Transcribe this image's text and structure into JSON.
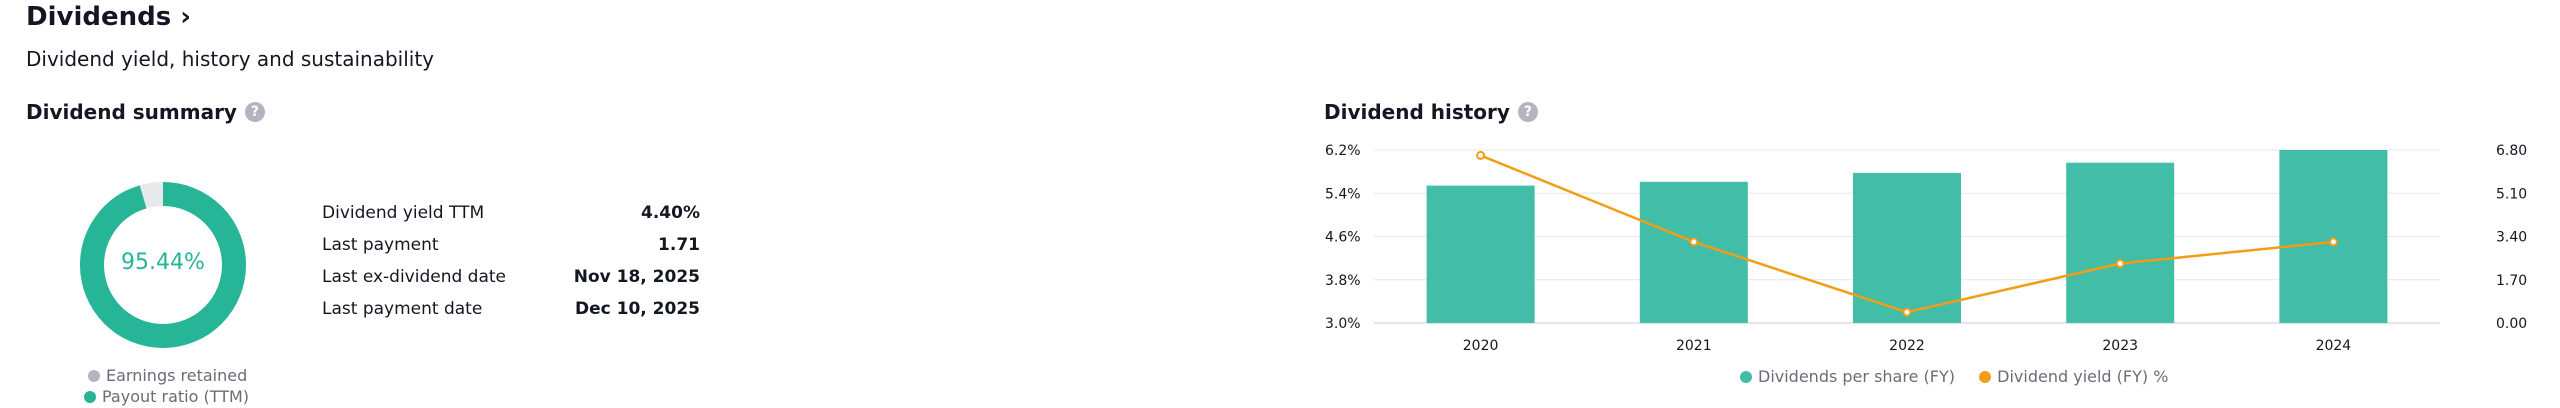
{
  "header": {
    "title": "Dividends ›",
    "subtitle": "Dividend yield, history and sustainability"
  },
  "summary": {
    "title": "Dividend summary",
    "help_glyph": "?",
    "donut": {
      "center_label": "95.44%",
      "payout_ratio_percent": 95.44,
      "colors": {
        "payout": "#26b597",
        "retained": "#e8e9ec"
      }
    },
    "legend": {
      "retained": "Earnings retained",
      "payout": "Payout ratio (TTM)",
      "retained_color": "#b2b5be",
      "payout_color": "#26b597"
    },
    "rows": [
      {
        "label": "Dividend yield TTM",
        "value": "4.40%"
      },
      {
        "label": "Last payment",
        "value": "1.71"
      },
      {
        "label": "Last ex-dividend date",
        "value": "Nov 18, 2025"
      },
      {
        "label": "Last payment date",
        "value": "Dec 10, 2025"
      }
    ]
  },
  "history": {
    "title": "Dividend history",
    "help_glyph": "?",
    "legend": {
      "bars": "Dividends per share (FY)",
      "line": "Dividend yield (FY) %"
    },
    "colors": {
      "bar": "#42bda8",
      "line": "#f29d16",
      "grid": "#e6e7ea"
    },
    "chart_data": {
      "type": "bar",
      "categories": [
        "2020",
        "2021",
        "2022",
        "2023",
        "2024"
      ],
      "series": [
        {
          "name": "Dividends per share (FY)",
          "type": "bar",
          "axis": "right",
          "values": [
            5.4,
            5.55,
            5.9,
            6.3,
            6.8
          ]
        },
        {
          "name": "Dividend yield (FY) %",
          "type": "line",
          "axis": "left",
          "values": [
            6.1,
            4.5,
            3.2,
            4.1,
            4.5
          ]
        }
      ],
      "left_axis": {
        "ticks": [
          "3.0%",
          "3.8%",
          "4.6%",
          "5.4%",
          "6.2%"
        ],
        "range": [
          3.0,
          6.2
        ]
      },
      "right_axis": {
        "ticks": [
          "0.00",
          "1.70",
          "3.40",
          "5.10",
          "6.80"
        ],
        "range": [
          0,
          6.8
        ]
      },
      "grid": true
    }
  }
}
